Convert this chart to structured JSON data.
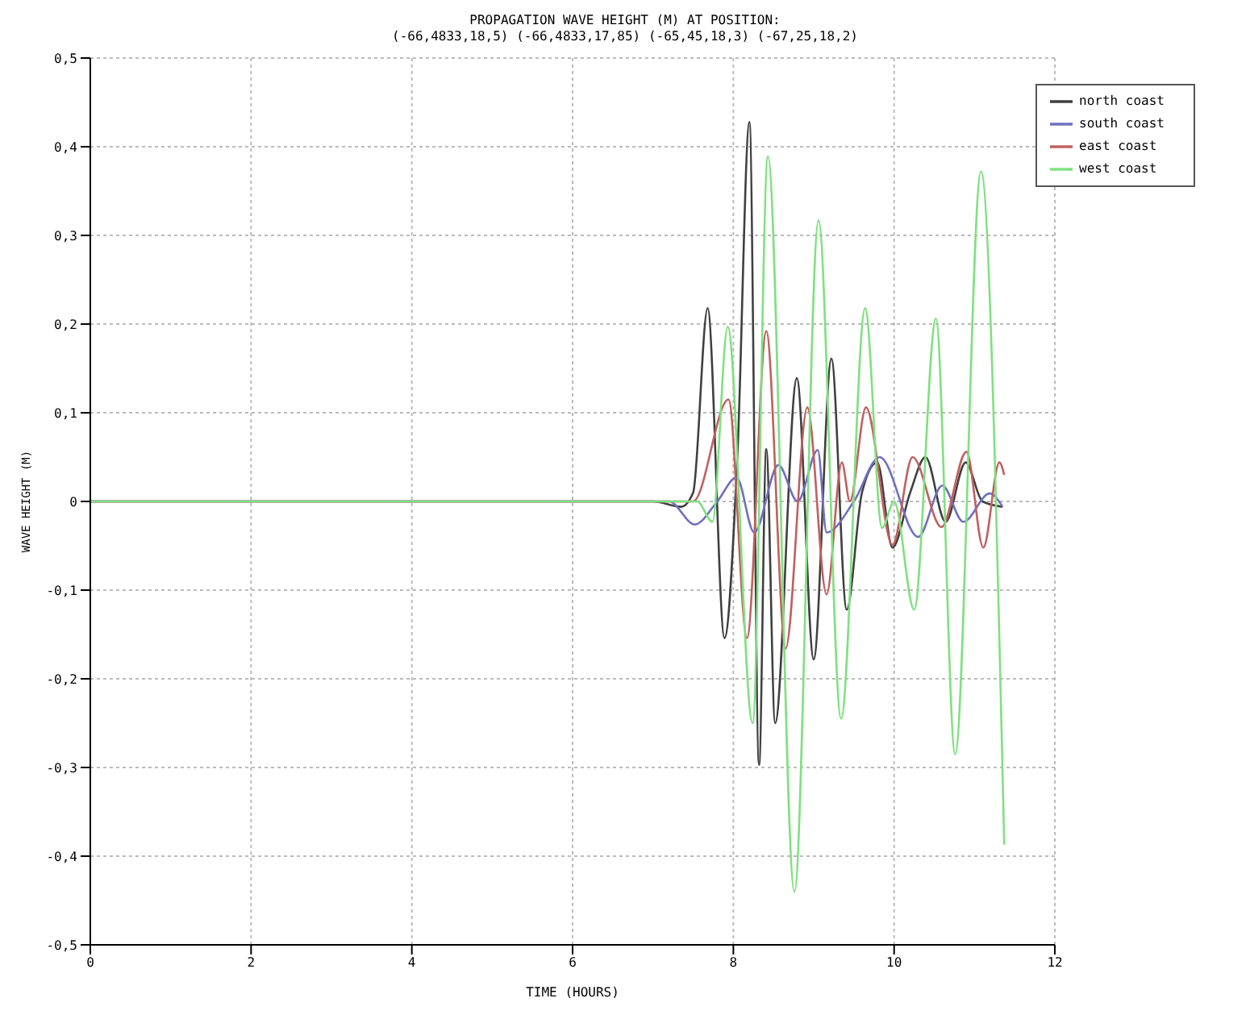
{
  "chart_data": {
    "type": "line",
    "title": "PROPAGATION WAVE HEIGHT (M) AT POSITION:",
    "subtitle": "(-66,4833,18,5) (-66,4833,17,85) (-65,45,18,3) (-67,25,18,2)",
    "xlabel": "TIME (HOURS)",
    "ylabel": "WAVE HEIGHT (M)",
    "xlim": [
      0,
      12
    ],
    "xticks": [
      0,
      2,
      4,
      6,
      8,
      10,
      12
    ],
    "ylim": [
      -0.5,
      0.5
    ],
    "yticks": [
      {
        "value": -0.5,
        "label": "-0,5"
      },
      {
        "value": -0.4,
        "label": "-0,4"
      },
      {
        "value": -0.3,
        "label": "-0,3"
      },
      {
        "value": -0.2,
        "label": "-0,2"
      },
      {
        "value": -0.1,
        "label": "-0,1"
      },
      {
        "value": 0,
        "label": "0"
      },
      {
        "value": 0.1,
        "label": "0,1"
      },
      {
        "value": 0.2,
        "label": "0,2"
      },
      {
        "value": 0.3,
        "label": "0,3"
      },
      {
        "value": 0.4,
        "label": "0,4"
      },
      {
        "value": 0.5,
        "label": "0,5"
      }
    ],
    "grid": true,
    "legend": "top right",
    "marker": "none",
    "line_style": "solid",
    "series": [
      {
        "name": "north coast",
        "color": "#404040",
        "x": [
          0,
          7.0,
          7.35,
          7.5,
          7.68,
          7.89,
          8.05,
          8.2,
          8.32,
          8.41,
          8.52,
          8.79,
          9.0,
          9.22,
          9.41,
          9.6,
          9.79,
          9.98,
          10.2,
          10.39,
          10.64,
          10.89,
          11.1,
          11.35
        ],
        "values": [
          0,
          0,
          -0.006,
          0.01,
          0.218,
          -0.154,
          0.05,
          0.428,
          -0.297,
          0.059,
          -0.25,
          0.139,
          -0.178,
          0.161,
          -0.122,
          0.01,
          0.044,
          -0.052,
          0.01,
          0.05,
          -0.023,
          0.044,
          0.0,
          -0.006
        ]
      },
      {
        "name": "south coast",
        "color": "#7070c0",
        "x": [
          0,
          7.2,
          7.52,
          7.8,
          8.04,
          8.26,
          8.56,
          8.8,
          9.05,
          9.16,
          9.5,
          9.82,
          10.3,
          10.6,
          10.86,
          11.19,
          11.35
        ],
        "values": [
          0,
          0,
          -0.026,
          0.0,
          0.027,
          -0.035,
          0.041,
          0.0,
          0.058,
          -0.035,
          0.0,
          0.05,
          -0.04,
          0.018,
          -0.023,
          0.009,
          -0.006
        ]
      },
      {
        "name": "east coast",
        "color": "#c06060",
        "x": [
          0,
          7.5,
          7.94,
          8.17,
          8.41,
          8.65,
          8.92,
          9.16,
          9.35,
          9.45,
          9.65,
          9.98,
          10.23,
          10.59,
          10.9,
          11.11,
          11.31,
          11.37
        ],
        "values": [
          0,
          0,
          0.115,
          -0.154,
          0.192,
          -0.166,
          0.106,
          -0.105,
          0.044,
          0.0,
          0.106,
          -0.049,
          0.05,
          -0.029,
          0.056,
          -0.052,
          0.044,
          0.03
        ]
      },
      {
        "name": "west coast",
        "color": "#80e080",
        "x": [
          0,
          7.55,
          7.74,
          7.93,
          8.24,
          8.43,
          8.76,
          9.06,
          9.34,
          9.64,
          9.85,
          10.0,
          10.25,
          10.52,
          10.76,
          11.08,
          11.37
        ],
        "values": [
          0,
          0,
          -0.023,
          0.197,
          -0.25,
          0.389,
          -0.44,
          0.317,
          -0.245,
          0.218,
          -0.03,
          0.0,
          -0.122,
          0.206,
          -0.285,
          0.372,
          -0.387
        ]
      }
    ]
  }
}
